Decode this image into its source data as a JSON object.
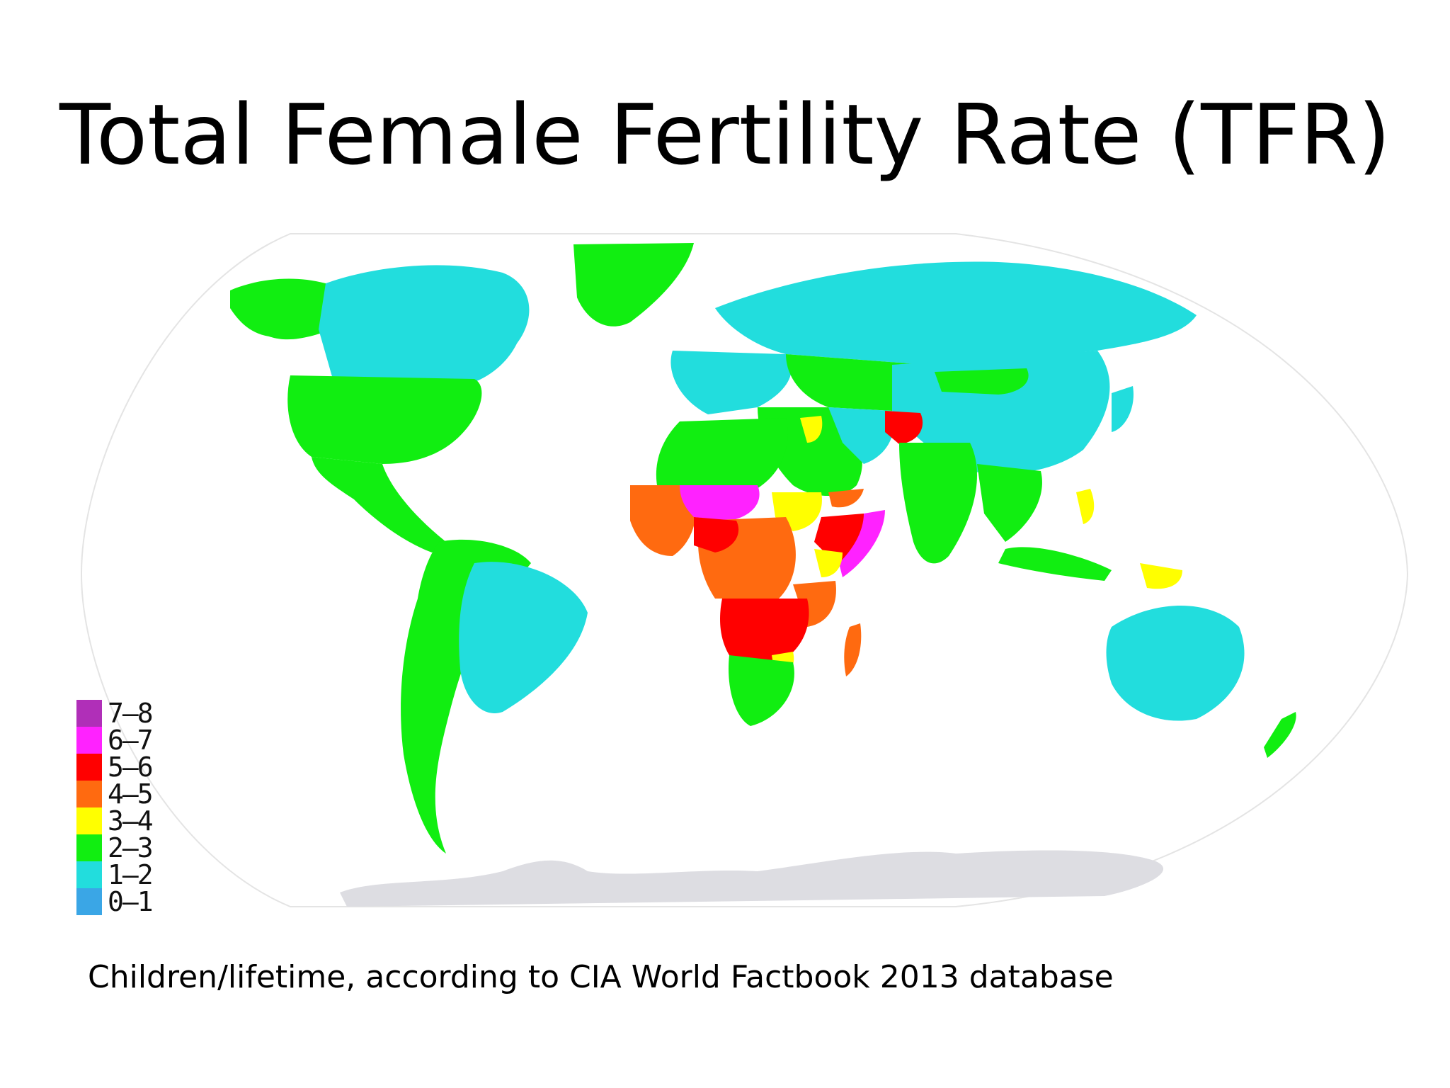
{
  "title": "Total Female Fertility Rate (TFR)",
  "caption": "Children/lifetime, according to CIA World Factbook 2013 database",
  "legend": [
    {
      "label": "7–8",
      "color": "#b02fb8"
    },
    {
      "label": "6–7",
      "color": "#ff22ff"
    },
    {
      "label": "5–6",
      "color": "#ff0000"
    },
    {
      "label": "4–5",
      "color": "#ff6a10"
    },
    {
      "label": "3–4",
      "color": "#ffff00"
    },
    {
      "label": "2–3",
      "color": "#11ee11"
    },
    {
      "label": "1–2",
      "color": "#22dddd"
    },
    {
      "label": "0–1",
      "color": "#3aa6e6"
    }
  ],
  "colors": {
    "ocean": "#ffffff",
    "antarctica": "#dddde2",
    "border": "#e4e4e4"
  }
}
